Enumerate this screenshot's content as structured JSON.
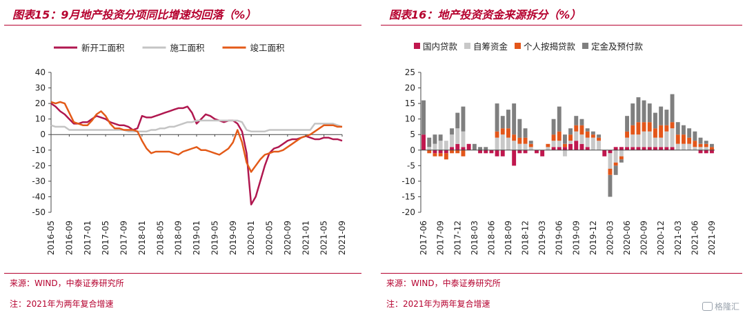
{
  "left": {
    "title": "图表15：9月地产投资分项同比增速均回落（%）",
    "source": "来源：WIND，中泰证券研究所",
    "note": "注：2021年为两年复合增速"
  },
  "right": {
    "title": "图表16：地产投资资金来源拆分（%）",
    "source": "来源：WIND，中泰证券研究所",
    "note": "注：2021年为两年复合增速"
  },
  "watermark": "格隆汇",
  "chart_data": [
    {
      "type": "line",
      "title": "图表15：9月地产投资分项同比增速均回落（%）",
      "ylim": [
        -50,
        40
      ],
      "yticks": [
        40,
        30,
        20,
        10,
        0,
        -10,
        -20,
        -30,
        -40,
        -50
      ],
      "legend_position": "top",
      "grid": false,
      "x_tick_labels": [
        "2016-05",
        "2016-09",
        "2017-01",
        "2017-05",
        "2017-09",
        "2018-01",
        "2018-05",
        "2018-09",
        "2019-01",
        "2019-05",
        "2019-09",
        "2020-01",
        "2020-05",
        "2020-09",
        "2021-01",
        "2021-05",
        "2021-09"
      ],
      "x_tick_positions": [
        0,
        4,
        8,
        12,
        16,
        20,
        24,
        28,
        32,
        36,
        40,
        44,
        48,
        52,
        56,
        60,
        64
      ],
      "x_count": 65,
      "series": [
        {
          "name": "新开工面积",
          "color": "#b0174f",
          "points": [
            [
              0,
              20
            ],
            [
              1,
              18
            ],
            [
              2,
              15
            ],
            [
              3,
              13
            ],
            [
              4,
              10
            ],
            [
              5,
              7
            ],
            [
              6,
              7
            ],
            [
              7,
              8
            ],
            [
              8,
              8
            ],
            [
              9,
              10
            ],
            [
              10,
              12
            ],
            [
              11,
              11
            ],
            [
              12,
              10
            ],
            [
              13,
              8
            ],
            [
              14,
              7
            ],
            [
              15,
              6
            ],
            [
              16,
              6
            ],
            [
              17,
              5
            ],
            [
              18,
              3
            ],
            [
              19,
              4
            ],
            [
              20,
              12
            ],
            [
              21,
              11
            ],
            [
              22,
              11
            ],
            [
              23,
              12
            ],
            [
              24,
              13
            ],
            [
              25,
              14
            ],
            [
              26,
              15
            ],
            [
              27,
              16
            ],
            [
              28,
              17
            ],
            [
              29,
              17
            ],
            [
              30,
              18
            ],
            [
              31,
              14
            ],
            [
              32,
              7
            ],
            [
              33,
              10
            ],
            [
              34,
              13
            ],
            [
              35,
              12
            ],
            [
              36,
              10
            ],
            [
              37,
              9
            ],
            [
              38,
              8
            ],
            [
              39,
              9
            ],
            [
              40,
              9
            ],
            [
              41,
              7
            ],
            [
              42,
              2
            ],
            [
              43,
              -12
            ],
            [
              44,
              -45
            ],
            [
              45,
              -40
            ],
            [
              46,
              -30
            ],
            [
              47,
              -20
            ],
            [
              48,
              -12
            ],
            [
              49,
              -9
            ],
            [
              50,
              -8
            ],
            [
              51,
              -6
            ],
            [
              52,
              -4
            ],
            [
              53,
              -3
            ],
            [
              54,
              -3
            ],
            [
              55,
              -2
            ],
            [
              56,
              -1
            ],
            [
              57,
              -2
            ],
            [
              58,
              -3
            ],
            [
              59,
              -3
            ],
            [
              60,
              -2
            ],
            [
              61,
              -2
            ],
            [
              62,
              -3
            ],
            [
              63,
              -3
            ],
            [
              64,
              -4
            ]
          ]
        },
        {
          "name": "施工面积",
          "color": "#c4c4c4",
          "points": [
            [
              0,
              6
            ],
            [
              1,
              5
            ],
            [
              2,
              5
            ],
            [
              3,
              5
            ],
            [
              4,
              3
            ],
            [
              5,
              3
            ],
            [
              6,
              3
            ],
            [
              7,
              3
            ],
            [
              8,
              3
            ],
            [
              9,
              3
            ],
            [
              10,
              3
            ],
            [
              11,
              3
            ],
            [
              12,
              3
            ],
            [
              13,
              3
            ],
            [
              14,
              3
            ],
            [
              15,
              3
            ],
            [
              16,
              3
            ],
            [
              17,
              2
            ],
            [
              18,
              2
            ],
            [
              19,
              2
            ],
            [
              20,
              2
            ],
            [
              21,
              2
            ],
            [
              22,
              3
            ],
            [
              23,
              3
            ],
            [
              24,
              4
            ],
            [
              25,
              4
            ],
            [
              26,
              5
            ],
            [
              27,
              5
            ],
            [
              28,
              6
            ],
            [
              29,
              7
            ],
            [
              30,
              8
            ],
            [
              31,
              8
            ],
            [
              32,
              9
            ],
            [
              33,
              9
            ],
            [
              34,
              9
            ],
            [
              35,
              9
            ],
            [
              36,
              9
            ],
            [
              37,
              9
            ],
            [
              38,
              9
            ],
            [
              39,
              9
            ],
            [
              40,
              9
            ],
            [
              41,
              9
            ],
            [
              42,
              8
            ],
            [
              43,
              3
            ],
            [
              44,
              2
            ],
            [
              45,
              2
            ],
            [
              46,
              2
            ],
            [
              47,
              2
            ],
            [
              48,
              3
            ],
            [
              49,
              3
            ],
            [
              50,
              3
            ],
            [
              51,
              3
            ],
            [
              52,
              3
            ],
            [
              53,
              3
            ],
            [
              54,
              3
            ],
            [
              55,
              3
            ],
            [
              56,
              3
            ],
            [
              57,
              3
            ],
            [
              58,
              7
            ],
            [
              59,
              7
            ],
            [
              60,
              7
            ],
            [
              61,
              7
            ],
            [
              62,
              7
            ],
            [
              63,
              6
            ],
            [
              64,
              5
            ]
          ]
        },
        {
          "name": "竣工面积",
          "color": "#e35a18",
          "points": [
            [
              0,
              21
            ],
            [
              1,
              20
            ],
            [
              2,
              21
            ],
            [
              3,
              20
            ],
            [
              4,
              14
            ],
            [
              5,
              8
            ],
            [
              6,
              7
            ],
            [
              7,
              6
            ],
            [
              8,
              6
            ],
            [
              9,
              9
            ],
            [
              10,
              13
            ],
            [
              11,
              15
            ],
            [
              12,
              12
            ],
            [
              13,
              7
            ],
            [
              14,
              4
            ],
            [
              15,
              4
            ],
            [
              16,
              3
            ],
            [
              17,
              3
            ],
            [
              18,
              3
            ],
            [
              19,
              2
            ],
            [
              20,
              -4
            ],
            [
              21,
              -9
            ],
            [
              22,
              -12
            ],
            [
              23,
              -11
            ],
            [
              24,
              -11
            ],
            [
              25,
              -11
            ],
            [
              26,
              -11
            ],
            [
              27,
              -12
            ],
            [
              28,
              -13
            ],
            [
              29,
              -11
            ],
            [
              30,
              -10
            ],
            [
              31,
              -9
            ],
            [
              32,
              -8
            ],
            [
              33,
              -10
            ],
            [
              34,
              -10
            ],
            [
              35,
              -11
            ],
            [
              36,
              -12
            ],
            [
              37,
              -13
            ],
            [
              38,
              -11
            ],
            [
              39,
              -9
            ],
            [
              40,
              -5
            ],
            [
              41,
              3
            ],
            [
              42,
              -5
            ],
            [
              43,
              -18
            ],
            [
              44,
              -24
            ],
            [
              45,
              -20
            ],
            [
              46,
              -16
            ],
            [
              47,
              -13
            ],
            [
              48,
              -12
            ],
            [
              49,
              -11
            ],
            [
              50,
              -11
            ],
            [
              51,
              -10
            ],
            [
              52,
              -8
            ],
            [
              53,
              -6
            ],
            [
              54,
              -4
            ],
            [
              55,
              -2
            ],
            [
              56,
              -1
            ],
            [
              57,
              0
            ],
            [
              58,
              2
            ],
            [
              59,
              4
            ],
            [
              60,
              6
            ],
            [
              61,
              6
            ],
            [
              62,
              6
            ],
            [
              63,
              5
            ],
            [
              64,
              5
            ]
          ]
        }
      ]
    },
    {
      "type": "bar",
      "title": "图表16：地产投资资金来源拆分（%）",
      "stacked": true,
      "ylim": [
        -20,
        25
      ],
      "yticks": [
        25,
        20,
        15,
        10,
        5,
        0,
        -5,
        -10,
        -15,
        -20
      ],
      "legend_position": "top",
      "grid": false,
      "x_tick_labels": [
        "2017-06",
        "2017-09",
        "2017-12",
        "2018-03",
        "2018-06",
        "2018-09",
        "2018-12",
        "2019-03",
        "2019-06",
        "2019-09",
        "2019-12",
        "2020-03",
        "2020-06",
        "2020-09",
        "2020-12",
        "2021-03",
        "2021-06",
        "2021-09"
      ],
      "x_tick_positions": [
        0,
        3,
        6,
        9,
        12,
        15,
        18,
        21,
        24,
        27,
        30,
        33,
        36,
        39,
        42,
        45,
        48,
        51
      ],
      "x_count": 52,
      "series": [
        {
          "name": "国内贷款",
          "color": "#c0174e",
          "values": [
            5,
            0,
            -1,
            -1,
            -1,
            1,
            2,
            1,
            2,
            0,
            -1,
            -1,
            -1,
            -2,
            -2,
            0,
            -5,
            -1,
            -1,
            0,
            -1,
            -2,
            0,
            1,
            1,
            1,
            2,
            3,
            2,
            1,
            0,
            0,
            -2,
            -1,
            1,
            1,
            1,
            1,
            1,
            1,
            1,
            1,
            1,
            1,
            1,
            0,
            0,
            0,
            0,
            -1,
            -1,
            -1
          ]
        },
        {
          "name": "自筹资金",
          "color": "#c8c8c8",
          "values": [
            0,
            1,
            2,
            3,
            3,
            4,
            5,
            5,
            0,
            0,
            0,
            0,
            0,
            4,
            5,
            4,
            3,
            2,
            2,
            1,
            0,
            0,
            1,
            2,
            2,
            -2,
            1,
            3,
            3,
            3,
            4,
            3,
            0,
            -5,
            -4,
            -2,
            3,
            4,
            4,
            5,
            5,
            3,
            3,
            5,
            6,
            2,
            2,
            2,
            1,
            1,
            1,
            0
          ]
        },
        {
          "name": "个人按揭贷款",
          "color": "#e3561a",
          "values": [
            0,
            -1,
            -1,
            -1,
            -2,
            -1,
            -1,
            -2,
            0,
            0,
            0,
            0,
            0,
            2,
            2,
            3,
            2,
            2,
            2,
            1,
            0,
            0,
            1,
            2,
            3,
            1,
            2,
            2,
            3,
            2,
            1,
            1,
            0,
            -2,
            -1,
            -1,
            2,
            3,
            4,
            3,
            3,
            3,
            4,
            2,
            2,
            3,
            3,
            2,
            2,
            1,
            1,
            1
          ]
        },
        {
          "name": "定金及预付款",
          "color": "#7f7f7f",
          "values": [
            11,
            3,
            3,
            2,
            0,
            2,
            5,
            8,
            0,
            2,
            1,
            1,
            0,
            9,
            4,
            6,
            10,
            6,
            3,
            1,
            0,
            0,
            0,
            5,
            8,
            3,
            2,
            3,
            2,
            1,
            1,
            1,
            0,
            -7,
            -3,
            -1,
            5,
            7,
            8,
            7,
            6,
            5,
            6,
            5,
            9,
            4,
            3,
            3,
            3,
            2,
            1,
            1
          ]
        }
      ]
    }
  ]
}
